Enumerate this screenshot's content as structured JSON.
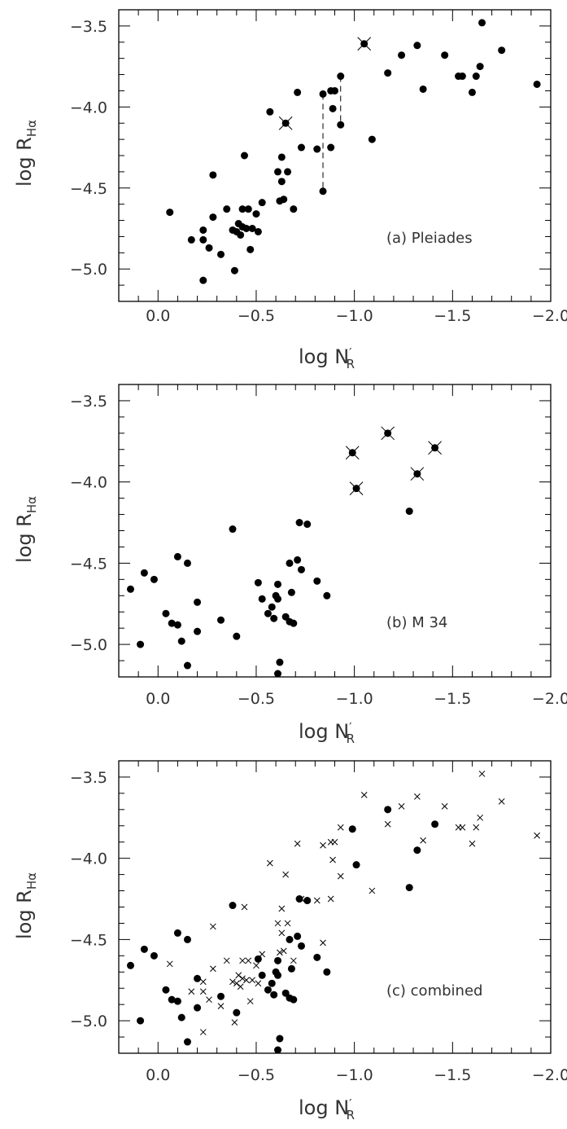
{
  "chart_data": [
    {
      "type": "scatter",
      "title": "",
      "annotation": "(a) Pleiades",
      "xlabel_main": "log N",
      "xlabel_sub": "R",
      "xlabel_prime": "′",
      "ylabel_main": "log R",
      "ylabel_sub": "Hα",
      "xlim": [
        0.2,
        -2.0
      ],
      "ylim": [
        -5.2,
        -3.4
      ],
      "xticks": [
        0.0,
        -0.5,
        -1.0,
        -1.5,
        -2.0
      ],
      "xtick_labels": [
        "0.0",
        "−0.5",
        "−1.0",
        "−1.5",
        "−2.0"
      ],
      "yticks": [
        -3.5,
        -4.0,
        -4.5,
        -5.0
      ],
      "ytick_labels": [
        "−3.5",
        "−4.0",
        "−4.5",
        "−5.0"
      ],
      "grid": false,
      "series": [
        {
          "marker": "filled-circle",
          "points": [
            [
              -0.06,
              -4.65
            ],
            [
              -0.17,
              -4.82
            ],
            [
              -0.23,
              -4.82
            ],
            [
              -0.23,
              -4.76
            ],
            [
              -0.23,
              -5.07
            ],
            [
              -0.26,
              -4.87
            ],
            [
              -0.28,
              -4.42
            ],
            [
              -0.28,
              -4.68
            ],
            [
              -0.32,
              -4.91
            ],
            [
              -0.35,
              -4.63
            ],
            [
              -0.38,
              -4.76
            ],
            [
              -0.39,
              -5.01
            ],
            [
              -0.4,
              -4.77
            ],
            [
              -0.41,
              -4.72
            ],
            [
              -0.42,
              -4.79
            ],
            [
              -0.43,
              -4.74
            ],
            [
              -0.43,
              -4.63
            ],
            [
              -0.44,
              -4.3
            ],
            [
              -0.45,
              -4.75
            ],
            [
              -0.46,
              -4.63
            ],
            [
              -0.47,
              -4.88
            ],
            [
              -0.48,
              -4.75
            ],
            [
              -0.5,
              -4.66
            ],
            [
              -0.51,
              -4.77
            ],
            [
              -0.53,
              -4.59
            ],
            [
              -0.57,
              -4.03
            ],
            [
              -0.61,
              -4.4
            ],
            [
              -0.62,
              -4.58
            ],
            [
              -0.63,
              -4.46
            ],
            [
              -0.63,
              -4.31
            ],
            [
              -0.64,
              -4.57
            ],
            [
              -0.65,
              -4.1
            ],
            [
              -0.66,
              -4.4
            ],
            [
              -0.69,
              -4.63
            ],
            [
              -0.71,
              -3.91
            ],
            [
              -0.73,
              -4.25
            ],
            [
              -0.81,
              -4.26
            ],
            [
              -0.84,
              -4.52
            ],
            [
              -0.84,
              -3.92
            ],
            [
              -0.88,
              -3.9
            ],
            [
              -0.88,
              -4.25
            ],
            [
              -0.89,
              -4.01
            ],
            [
              -0.9,
              -3.9
            ],
            [
              -0.93,
              -3.81
            ],
            [
              -0.93,
              -4.11
            ],
            [
              -1.05,
              -3.61
            ],
            [
              -1.09,
              -4.2
            ],
            [
              -1.17,
              -3.79
            ],
            [
              -1.24,
              -3.68
            ],
            [
              -1.32,
              -3.62
            ],
            [
              -1.35,
              -3.89
            ],
            [
              -1.46,
              -3.68
            ],
            [
              -1.53,
              -3.81
            ],
            [
              -1.55,
              -3.81
            ],
            [
              -1.6,
              -3.91
            ],
            [
              -1.62,
              -3.81
            ],
            [
              -1.64,
              -3.75
            ],
            [
              -1.65,
              -3.48
            ],
            [
              -1.75,
              -3.65
            ],
            [
              -1.93,
              -3.86
            ]
          ]
        },
        {
          "marker": "x-overlay",
          "points": [
            [
              -0.65,
              -4.1
            ],
            [
              -1.05,
              -3.61
            ]
          ]
        }
      ],
      "connectors": [
        [
          [
            -0.84,
            -3.92
          ],
          [
            -0.84,
            -4.52
          ]
        ],
        [
          [
            -0.93,
            -3.81
          ],
          [
            -0.93,
            -4.11
          ]
        ]
      ]
    },
    {
      "type": "scatter",
      "title": "",
      "annotation": "(b) M 34",
      "xlabel_main": "log N",
      "xlabel_sub": "R",
      "xlabel_prime": "′",
      "ylabel_main": "log R",
      "ylabel_sub": "Hα",
      "xlim": [
        0.2,
        -2.0
      ],
      "ylim": [
        -5.2,
        -3.4
      ],
      "xticks": [
        0.0,
        -0.5,
        -1.0,
        -1.5,
        -2.0
      ],
      "xtick_labels": [
        "0.0",
        "−0.5",
        "−1.0",
        "−1.5",
        "−2.0"
      ],
      "yticks": [
        -3.5,
        -4.0,
        -4.5,
        -5.0
      ],
      "ytick_labels": [
        "−3.5",
        "−4.0",
        "−4.5",
        "−5.0"
      ],
      "grid": false,
      "series": [
        {
          "marker": "filled-circle",
          "points": [
            [
              0.14,
              -4.66
            ],
            [
              0.09,
              -5.0
            ],
            [
              0.07,
              -4.56
            ],
            [
              0.02,
              -4.6
            ],
            [
              -0.04,
              -4.81
            ],
            [
              -0.07,
              -4.87
            ],
            [
              -0.1,
              -4.46
            ],
            [
              -0.1,
              -4.88
            ],
            [
              -0.12,
              -4.98
            ],
            [
              -0.15,
              -4.5
            ],
            [
              -0.15,
              -5.13
            ],
            [
              -0.2,
              -4.74
            ],
            [
              -0.2,
              -4.92
            ],
            [
              -0.32,
              -4.85
            ],
            [
              -0.38,
              -4.29
            ],
            [
              -0.4,
              -4.95
            ],
            [
              -0.51,
              -4.62
            ],
            [
              -0.53,
              -4.72
            ],
            [
              -0.56,
              -4.81
            ],
            [
              -0.58,
              -4.77
            ],
            [
              -0.59,
              -4.84
            ],
            [
              -0.6,
              -4.7
            ],
            [
              -0.61,
              -4.63
            ],
            [
              -0.61,
              -4.72
            ],
            [
              -0.61,
              -5.18
            ],
            [
              -0.62,
              -5.11
            ],
            [
              -0.65,
              -4.83
            ],
            [
              -0.67,
              -4.5
            ],
            [
              -0.67,
              -4.86
            ],
            [
              -0.68,
              -4.68
            ],
            [
              -0.69,
              -4.87
            ],
            [
              -0.71,
              -4.48
            ],
            [
              -0.72,
              -4.25
            ],
            [
              -0.73,
              -4.54
            ],
            [
              -0.76,
              -4.26
            ],
            [
              -0.81,
              -4.61
            ],
            [
              -0.86,
              -4.7
            ],
            [
              -0.99,
              -3.82
            ],
            [
              -1.01,
              -4.04
            ],
            [
              -1.17,
              -3.7
            ],
            [
              -1.28,
              -4.18
            ],
            [
              -1.32,
              -3.95
            ],
            [
              -1.41,
              -3.79
            ]
          ]
        },
        {
          "marker": "x-overlay",
          "points": [
            [
              -0.99,
              -3.82
            ],
            [
              -1.01,
              -4.04
            ],
            [
              -1.17,
              -3.7
            ],
            [
              -1.32,
              -3.95
            ],
            [
              -1.41,
              -3.79
            ]
          ]
        }
      ]
    },
    {
      "type": "scatter",
      "title": "",
      "annotation": "(c) combined",
      "xlabel_main": "log N",
      "xlabel_sub": "R",
      "xlabel_prime": "′",
      "ylabel_main": "log R",
      "ylabel_sub": "Hα",
      "xlim": [
        0.2,
        -2.0
      ],
      "ylim": [
        -5.2,
        -3.4
      ],
      "xticks": [
        0.0,
        -0.5,
        -1.0,
        -1.5,
        -2.0
      ],
      "xtick_labels": [
        "0.0",
        "−0.5",
        "−1.0",
        "−1.5",
        "−2.0"
      ],
      "yticks": [
        -3.5,
        -4.0,
        -4.5,
        -5.0
      ],
      "ytick_labels": [
        "−3.5",
        "−4.0",
        "−4.5",
        "−5.0"
      ],
      "grid": false,
      "series": [
        {
          "marker": "filled-circle",
          "points": [
            [
              0.14,
              -4.66
            ],
            [
              0.09,
              -5.0
            ],
            [
              0.07,
              -4.56
            ],
            [
              0.02,
              -4.6
            ],
            [
              -0.04,
              -4.81
            ],
            [
              -0.07,
              -4.87
            ],
            [
              -0.1,
              -4.46
            ],
            [
              -0.1,
              -4.88
            ],
            [
              -0.12,
              -4.98
            ],
            [
              -0.15,
              -4.5
            ],
            [
              -0.15,
              -5.13
            ],
            [
              -0.2,
              -4.74
            ],
            [
              -0.2,
              -4.92
            ],
            [
              -0.32,
              -4.85
            ],
            [
              -0.38,
              -4.29
            ],
            [
              -0.4,
              -4.95
            ],
            [
              -0.51,
              -4.62
            ],
            [
              -0.53,
              -4.72
            ],
            [
              -0.56,
              -4.81
            ],
            [
              -0.58,
              -4.77
            ],
            [
              -0.59,
              -4.84
            ],
            [
              -0.6,
              -4.7
            ],
            [
              -0.61,
              -4.63
            ],
            [
              -0.61,
              -4.72
            ],
            [
              -0.61,
              -5.18
            ],
            [
              -0.62,
              -5.11
            ],
            [
              -0.65,
              -4.83
            ],
            [
              -0.67,
              -4.5
            ],
            [
              -0.67,
              -4.86
            ],
            [
              -0.68,
              -4.68
            ],
            [
              -0.69,
              -4.87
            ],
            [
              -0.71,
              -4.48
            ],
            [
              -0.72,
              -4.25
            ],
            [
              -0.73,
              -4.54
            ],
            [
              -0.76,
              -4.26
            ],
            [
              -0.81,
              -4.61
            ],
            [
              -0.86,
              -4.7
            ],
            [
              -0.99,
              -3.82
            ],
            [
              -1.01,
              -4.04
            ],
            [
              -1.17,
              -3.7
            ],
            [
              -1.28,
              -4.18
            ],
            [
              -1.32,
              -3.95
            ],
            [
              -1.41,
              -3.79
            ]
          ]
        },
        {
          "marker": "x",
          "points": [
            [
              -0.06,
              -4.65
            ],
            [
              -0.17,
              -4.82
            ],
            [
              -0.23,
              -4.82
            ],
            [
              -0.23,
              -4.76
            ],
            [
              -0.23,
              -5.07
            ],
            [
              -0.26,
              -4.87
            ],
            [
              -0.28,
              -4.42
            ],
            [
              -0.28,
              -4.68
            ],
            [
              -0.32,
              -4.91
            ],
            [
              -0.35,
              -4.63
            ],
            [
              -0.38,
              -4.76
            ],
            [
              -0.39,
              -5.01
            ],
            [
              -0.4,
              -4.77
            ],
            [
              -0.41,
              -4.72
            ],
            [
              -0.42,
              -4.79
            ],
            [
              -0.43,
              -4.74
            ],
            [
              -0.43,
              -4.63
            ],
            [
              -0.44,
              -4.3
            ],
            [
              -0.45,
              -4.75
            ],
            [
              -0.46,
              -4.63
            ],
            [
              -0.47,
              -4.88
            ],
            [
              -0.48,
              -4.75
            ],
            [
              -0.5,
              -4.66
            ],
            [
              -0.51,
              -4.77
            ],
            [
              -0.53,
              -4.59
            ],
            [
              -0.57,
              -4.03
            ],
            [
              -0.61,
              -4.4
            ],
            [
              -0.62,
              -4.58
            ],
            [
              -0.63,
              -4.46
            ],
            [
              -0.63,
              -4.31
            ],
            [
              -0.64,
              -4.57
            ],
            [
              -0.65,
              -4.1
            ],
            [
              -0.66,
              -4.4
            ],
            [
              -0.69,
              -4.63
            ],
            [
              -0.71,
              -3.91
            ],
            [
              -0.73,
              -4.25
            ],
            [
              -0.81,
              -4.26
            ],
            [
              -0.84,
              -4.52
            ],
            [
              -0.84,
              -3.92
            ],
            [
              -0.88,
              -3.9
            ],
            [
              -0.88,
              -4.25
            ],
            [
              -0.89,
              -4.01
            ],
            [
              -0.9,
              -3.9
            ],
            [
              -0.93,
              -3.81
            ],
            [
              -0.93,
              -4.11
            ],
            [
              -1.05,
              -3.61
            ],
            [
              -1.09,
              -4.2
            ],
            [
              -1.17,
              -3.79
            ],
            [
              -1.24,
              -3.68
            ],
            [
              -1.32,
              -3.62
            ],
            [
              -1.35,
              -3.89
            ],
            [
              -1.46,
              -3.68
            ],
            [
              -1.53,
              -3.81
            ],
            [
              -1.55,
              -3.81
            ],
            [
              -1.6,
              -3.91
            ],
            [
              -1.62,
              -3.81
            ],
            [
              -1.64,
              -3.75
            ],
            [
              -1.65,
              -3.48
            ],
            [
              -1.75,
              -3.65
            ],
            [
              -1.93,
              -3.86
            ]
          ]
        }
      ]
    }
  ]
}
